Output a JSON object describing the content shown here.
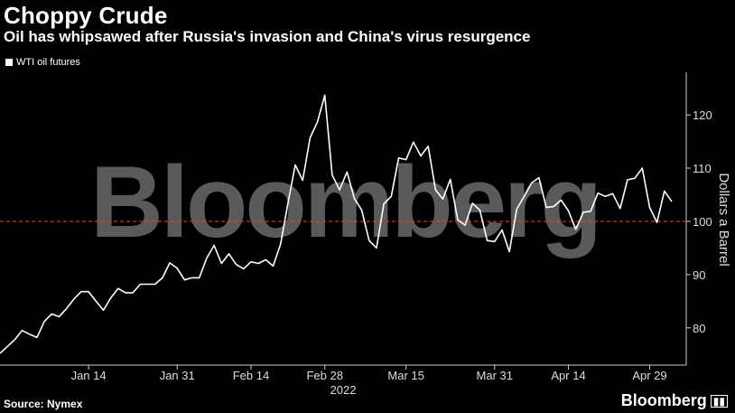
{
  "title": "Choppy Crude",
  "subtitle": "Oil has whipsawed after Russia's invasion and China's virus resurgence",
  "source": "Source: Nymex",
  "brand": "Bloomberg",
  "watermark": "Bloomberg",
  "colors": {
    "background": "#000000",
    "line": "#ffffff",
    "reference_line": "#ff3b30",
    "axis": "#cccccc"
  },
  "chart_data": {
    "type": "line",
    "series": [
      {
        "name": "WTI oil futures",
        "values": [
          75.2,
          76.5,
          77.8,
          79.5,
          78.8,
          78.2,
          81.2,
          82.6,
          82.1,
          83.6,
          85.4,
          86.8,
          86.8,
          85.0,
          83.3,
          85.6,
          87.4,
          86.6,
          86.6,
          88.2,
          88.2,
          88.2,
          89.4,
          92.2,
          91.2,
          89.0,
          89.4,
          89.4,
          93.1,
          95.5,
          92.1,
          93.9,
          91.9,
          91.1,
          92.4,
          92.1,
          92.8,
          91.6,
          95.7,
          103.4,
          110.6,
          107.7,
          115.7,
          118.7,
          123.7,
          108.7,
          105.9,
          109.3,
          104.3,
          102.1,
          96.4,
          95.0,
          103.3,
          104.7,
          111.9,
          111.6,
          114.9,
          112.3,
          114.1,
          105.9,
          104.2,
          107.9,
          100.3,
          99.3,
          103.4,
          102.1,
          96.4,
          96.2,
          98.4,
          94.3,
          102.3,
          104.7,
          107.2,
          108.2,
          102.6,
          102.8,
          104.0,
          102.0,
          98.5,
          101.7,
          101.9,
          105.3,
          104.7,
          105.2,
          102.4,
          107.8,
          108.1,
          110.0,
          102.6,
          99.8,
          105.7,
          103.7
        ]
      }
    ],
    "x_tick_labels": [
      "Jan 14",
      "Jan 31",
      "Feb 14",
      "Feb 28",
      "Mar 15",
      "Mar 31",
      "Apr 14",
      "Apr 29"
    ],
    "x_tick_positions": [
      12,
      24,
      34,
      44,
      55,
      67,
      77,
      88
    ],
    "year_label": "2022",
    "ylabel": "Dollars a Barrel",
    "y_ticks": [
      80,
      90,
      100,
      110,
      120
    ],
    "ylim": [
      73,
      128
    ],
    "reference_line": 100,
    "grid": false,
    "legend_position": "top-left"
  }
}
